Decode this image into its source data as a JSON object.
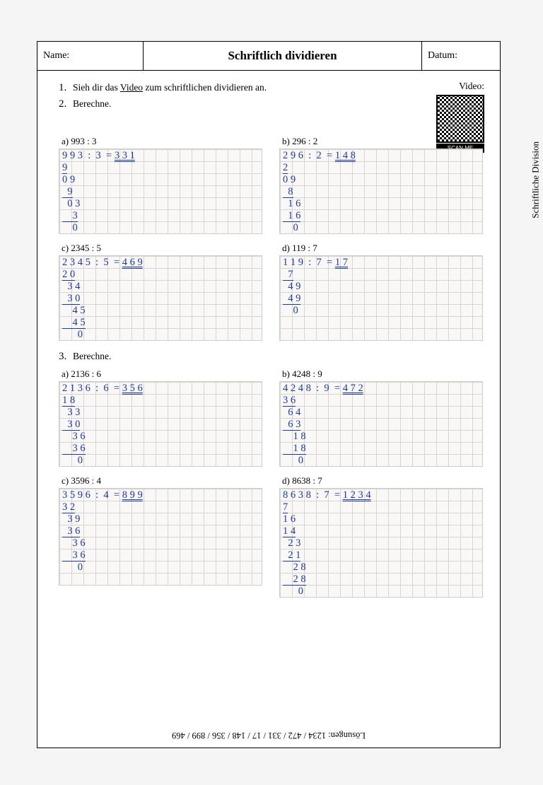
{
  "side_label": "Schriftliche Division",
  "header": {
    "name_label": "Name:",
    "title": "Schriftlich dividieren",
    "date_label": "Datum:"
  },
  "instr1_num": "1.",
  "instr1_pre": "Sieh dir das ",
  "instr1_link": "Video",
  "instr1_post": " zum schriftlichen dividieren an.",
  "video_label": "Video:",
  "qr_label": "SCAN ME",
  "instr2_num": "2.",
  "instr2_text": "Berechne.",
  "instr3_num": "3.",
  "instr3_text": "Berechne.",
  "sec2": {
    "a": {
      "label": "a) 993 : 3",
      "eq": "9 9 3  :  3  = ",
      "res": "3 3 1",
      "work": [
        "9",
        "0 9",
        "  9",
        "  0 3",
        "    3",
        "    0"
      ]
    },
    "b": {
      "label": "b) 296 : 2",
      "eq": "2 9 6  :  2  = ",
      "res": "1 4 8",
      "work": [
        "2",
        "0 9",
        "  8",
        "  1 6",
        "  1 6",
        "    0"
      ]
    },
    "c": {
      "label": "c) 2345 : 5",
      "eq": "2 3 4 5  :  5  = ",
      "res": "4 6 9",
      "work": [
        "2 0",
        "  3 4",
        "  3 0",
        "    4 5",
        "    4 5",
        "      0"
      ]
    },
    "d": {
      "label": "d) 119 : 7",
      "eq": "1 1 9  :  7  = ",
      "res": "1 7",
      "work": [
        "  7",
        "  4 9",
        "  4 9",
        "    0"
      ]
    }
  },
  "sec3": {
    "a": {
      "label": "a) 2136 : 6",
      "eq": "2 1 3 6  :  6  = ",
      "res": "3 5 6",
      "work": [
        "1 8",
        "  3 3",
        "  3 0",
        "    3 6",
        "    3 6",
        "      0"
      ]
    },
    "b": {
      "label": "b) 4248 : 9",
      "eq": "4 2 4 8  :  9  = ",
      "res": "4 7 2",
      "work": [
        "3 6",
        "  6 4",
        "  6 3",
        "    1 8",
        "    1 8",
        "      0"
      ]
    },
    "c": {
      "label": "c) 3596 : 4",
      "eq": "3 5 9 6  :  4  = ",
      "res": "8 9 9",
      "work": [
        "3 2",
        "  3 9",
        "  3 6",
        "    3 6",
        "    3 6",
        "      0"
      ]
    },
    "d": {
      "label": "d) 8638 : 7",
      "eq": "8 6 3 8  :  7  = ",
      "res": "1 2 3 4",
      "work": [
        "7",
        "1 6",
        "1 4",
        "  2 3",
        "  2 1",
        "    2 8",
        "    2 8",
        "      0"
      ]
    }
  },
  "solutions": "Lösungen: 1234  /  472  /  331  /  17  /  148  /  356  /  899  /  469"
}
